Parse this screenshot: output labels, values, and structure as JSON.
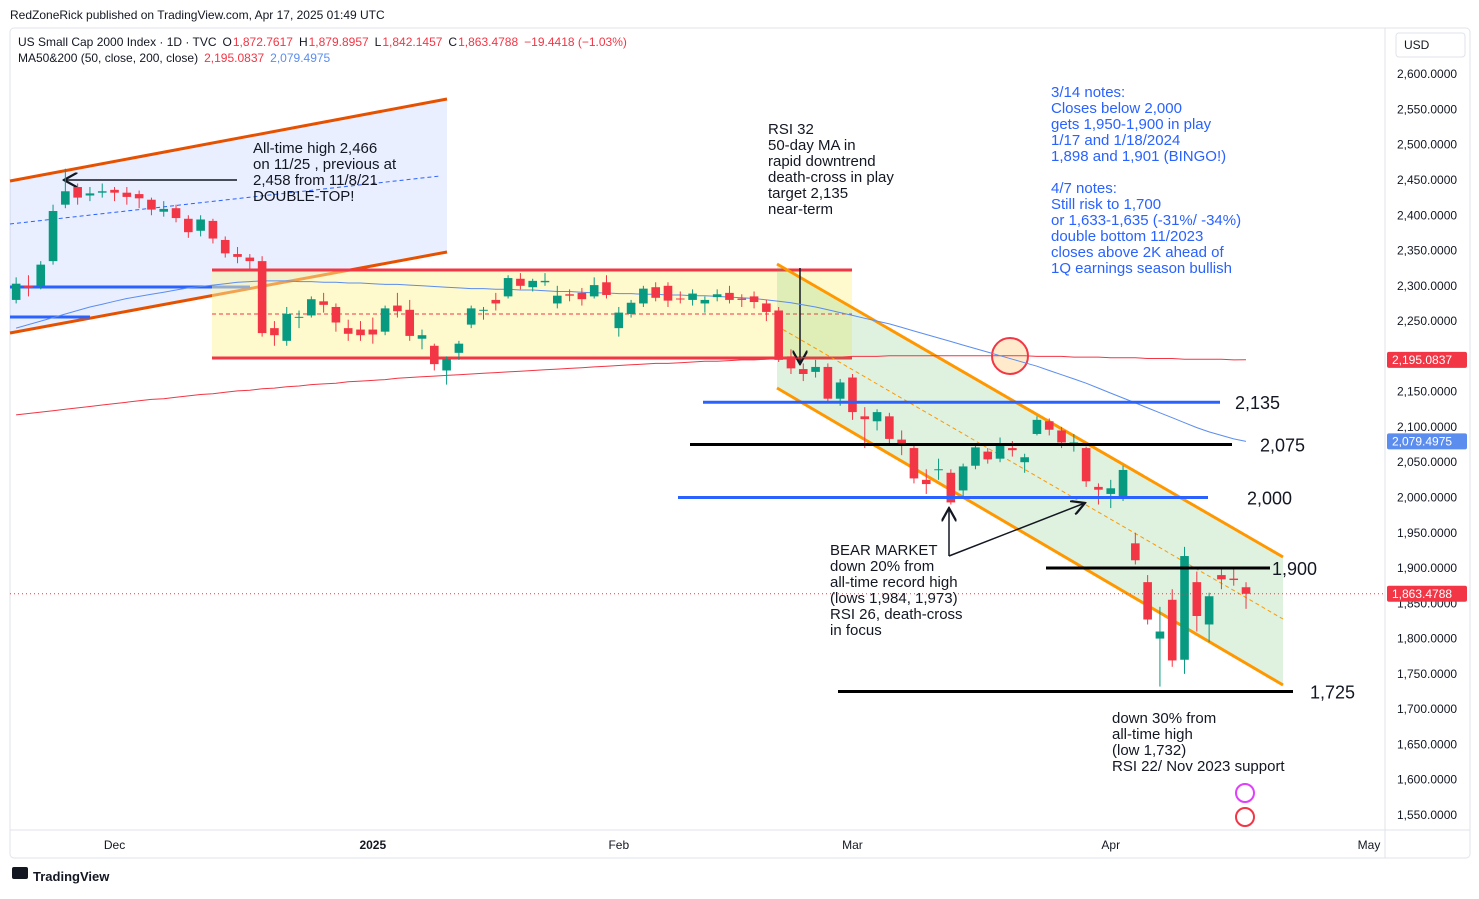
{
  "header": {
    "publisher": "RedZoneRick published on TradingView.com, Apr 17, 2025 01:49 UTC",
    "symbol": "US Small Cap 2000 Index · 1D · TVC",
    "ohlc": [
      {
        "key": "O",
        "label": "1,872.7617"
      },
      {
        "key": "H",
        "label": "1,879.8957"
      },
      {
        "key": "L",
        "label": "1,842.1457"
      },
      {
        "key": "C",
        "label": "1,863.4788"
      }
    ],
    "change": "−19.4418 (−1.03%)",
    "ma_title": "MA50&200 (50, close, 200, close)",
    "currency": "USD",
    "brand": "TradingView"
  },
  "chart_data": {
    "type": "candlestick",
    "candles": {
      "up_color": "#089981",
      "down_color": "#f23645",
      "open": [
        2280,
        2300,
        2300,
        2335,
        2415,
        2440,
        2428,
        2432,
        2436,
        2432,
        2430,
        2422,
        2405,
        2410,
        2395,
        2378,
        2392,
        2365,
        2345,
        2340,
        2335,
        2240,
        2222,
        2255,
        2258,
        2278,
        2270,
        2240,
        2238,
        2238,
        2235,
        2272,
        2266,
        2225,
        2215,
        2180,
        2205,
        2245,
        2265,
        2280,
        2285,
        2310,
        2298,
        2305,
        2275,
        2288,
        2290,
        2285,
        2305,
        2240,
        2260,
        2275,
        2298,
        2300,
        2282,
        2280,
        2275,
        2284,
        2290,
        2282,
        2285,
        2275,
        2265,
        2200,
        2182,
        2178,
        2185,
        2140,
        2170,
        2115,
        2108,
        2115,
        2082,
        2070,
        2025,
        2040,
        2035,
        2010,
        2045,
        2065,
        2055,
        2070,
        2050,
        2090,
        2108,
        2095,
        2075,
        2070,
        2015,
        2005,
        2000,
        1935,
        1880,
        1800,
        1855,
        1770,
        1880,
        1820,
        1890,
        1885,
        1872.7617
      ],
      "high": [
        2312,
        2315,
        2335,
        2415,
        2466,
        2445,
        2440,
        2445,
        2440,
        2440,
        2435,
        2425,
        2420,
        2415,
        2400,
        2400,
        2395,
        2370,
        2355,
        2345,
        2342,
        2250,
        2270,
        2265,
        2285,
        2290,
        2275,
        2252,
        2250,
        2255,
        2272,
        2290,
        2280,
        2238,
        2218,
        2200,
        2222,
        2272,
        2270,
        2290,
        2315,
        2318,
        2310,
        2318,
        2300,
        2295,
        2297,
        2312,
        2315,
        2270,
        2280,
        2300,
        2305,
        2305,
        2292,
        2295,
        2285,
        2295,
        2300,
        2288,
        2292,
        2280,
        2270,
        2210,
        2190,
        2195,
        2190,
        2168,
        2175,
        2128,
        2125,
        2120,
        2095,
        2075,
        2040,
        2055,
        2040,
        2048,
        2075,
        2070,
        2085,
        2080,
        2062,
        2115,
        2112,
        2100,
        2090,
        2072,
        2020,
        2025,
        2045,
        1950,
        1890,
        1845,
        1870,
        1930,
        1895,
        1865,
        1900,
        1900,
        1879.8957
      ],
      "low": [
        2275,
        2285,
        2295,
        2330,
        2410,
        2415,
        2420,
        2425,
        2420,
        2415,
        2410,
        2400,
        2398,
        2390,
        2368,
        2370,
        2360,
        2340,
        2332,
        2322,
        2228,
        2215,
        2215,
        2240,
        2255,
        2262,
        2235,
        2222,
        2222,
        2218,
        2230,
        2255,
        2222,
        2210,
        2180,
        2160,
        2195,
        2240,
        2252,
        2265,
        2282,
        2295,
        2292,
        2300,
        2268,
        2278,
        2272,
        2282,
        2282,
        2228,
        2255,
        2270,
        2278,
        2270,
        2275,
        2272,
        2262,
        2278,
        2275,
        2270,
        2268,
        2250,
        2192,
        2175,
        2165,
        2170,
        2135,
        2130,
        2110,
        2070,
        2095,
        2075,
        2060,
        2020,
        2005,
        2025,
        1990,
        2002,
        2040,
        2048,
        2050,
        2058,
        2035,
        2088,
        2088,
        2070,
        2065,
        2015,
        1990,
        1985,
        1995,
        1905,
        1820,
        1732,
        1760,
        1750,
        1810,
        1795,
        1870,
        1875,
        1842.1457
      ],
      "close": [
        2303,
        2297,
        2330,
        2406,
        2434,
        2425,
        2431,
        2434,
        2432,
        2426,
        2424,
        2408,
        2409,
        2396,
        2376,
        2394,
        2367,
        2346,
        2341,
        2335,
        2233,
        2230,
        2260,
        2256,
        2281,
        2273,
        2248,
        2232,
        2230,
        2231,
        2268,
        2264,
        2229,
        2230,
        2189,
        2196,
        2218,
        2268,
        2266,
        2275,
        2311,
        2300,
        2307,
        2307,
        2286,
        2286,
        2281,
        2301,
        2287,
        2262,
        2276,
        2296,
        2283,
        2279,
        2281,
        2289,
        2280,
        2288,
        2280,
        2280,
        2277,
        2263,
        2195,
        2183,
        2175,
        2185,
        2140,
        2163,
        2121,
        2111,
        2121,
        2083,
        2077,
        2027,
        2019,
        2040,
        1993,
        2044,
        2071,
        2054,
        2075,
        2067,
        2057,
        2110,
        2096,
        2078,
        2078,
        2023,
        2011,
        2013,
        2039,
        1911,
        1827,
        1810,
        1769,
        1917,
        1832,
        1860,
        1884,
        1883,
        1863.4788
      ]
    },
    "ma": [
      {
        "color": "#f23645",
        "values": [
          2117,
          2119,
          2121,
          2123,
          2125,
          2127,
          2129,
          2131,
          2133,
          2135,
          2137,
          2139,
          2140,
          2142,
          2144,
          2146,
          2147,
          2149,
          2151,
          2152,
          2154,
          2155,
          2157,
          2158,
          2160,
          2161,
          2162,
          2164,
          2165,
          2166,
          2167,
          2169,
          2170,
          2171,
          2172,
          2173,
          2174,
          2175,
          2176,
          2177,
          2178,
          2179,
          2180,
          2181,
          2182,
          2183,
          2184,
          2185,
          2186,
          2187,
          2188,
          2189,
          2190,
          2190,
          2191,
          2192,
          2193,
          2193,
          2194,
          2195,
          2195,
          2196,
          2197,
          2197,
          2198,
          2198,
          2199,
          2199,
          2200,
          2200,
          2200,
          2201,
          2201,
          2201,
          2201,
          2201,
          2201,
          2201,
          2201,
          2201,
          2201,
          2201,
          2201,
          2200,
          2200,
          2200,
          2199,
          2199,
          2199,
          2198,
          2198,
          2198,
          2197,
          2197,
          2197,
          2196,
          2196,
          2196,
          2196,
          2195,
          2195.0837
        ]
      },
      {
        "color": "#5b8def",
        "values": [
          2240,
          2245,
          2250,
          2255,
          2260,
          2265,
          2270,
          2274,
          2278,
          2282,
          2285,
          2288,
          2291,
          2294,
          2297,
          2299,
          2301,
          2303,
          2305,
          2306,
          2307,
          2307,
          2307,
          2306,
          2306,
          2305,
          2305,
          2304,
          2304,
          2303,
          2302,
          2302,
          2301,
          2300,
          2299,
          2298,
          2297,
          2296,
          2296,
          2295,
          2295,
          2294,
          2294,
          2293,
          2292,
          2292,
          2291,
          2290,
          2290,
          2289,
          2289,
          2288,
          2288,
          2287,
          2287,
          2286,
          2286,
          2285,
          2284,
          2283,
          2282,
          2280,
          2278,
          2276,
          2273,
          2270,
          2266,
          2262,
          2258,
          2254,
          2250,
          2246,
          2241,
          2236,
          2231,
          2226,
          2221,
          2216,
          2211,
          2206,
          2201,
          2196,
          2191,
          2186,
          2180,
          2174,
          2168,
          2162,
          2155,
          2148,
          2141,
          2134,
          2127,
          2120,
          2113,
          2106,
          2099,
          2093,
          2088,
          2083,
          2079.4975
        ]
      }
    ],
    "price_tags": [
      {
        "value": 2195.0837,
        "label": "2,195.0837",
        "color": "#f23645"
      },
      {
        "value": 2079.4975,
        "label": "2,079.4975",
        "color": "#5b8def"
      },
      {
        "value": 1863.4788,
        "label": "1,863.4788",
        "color": "#f23645"
      }
    ],
    "levels": [
      {
        "value": 2135,
        "label": "2,135",
        "color": "#2962ff"
      },
      {
        "value": 2075,
        "label": "2,075",
        "color": "#000000"
      },
      {
        "value": 2000,
        "label": "2,000",
        "color": "#2962ff"
      },
      {
        "value": 1900,
        "label": "1,900",
        "color": "#000000"
      },
      {
        "value": 1725,
        "label": "1,725",
        "color": "#000000"
      }
    ],
    "ylim": [
      1528.7,
      2665.4
    ],
    "yticks": [
      {
        "value": 1550,
        "label": "1,550.0000"
      },
      {
        "value": 1600,
        "label": "1,600.0000"
      },
      {
        "value": 1650,
        "label": "1,650.0000"
      },
      {
        "value": 1700,
        "label": "1,700.0000"
      },
      {
        "value": 1750,
        "label": "1,750.0000"
      },
      {
        "value": 1800,
        "label": "1,800.0000"
      },
      {
        "value": 1850,
        "label": "1,850.0000"
      },
      {
        "value": 1900,
        "label": "1,900.0000"
      },
      {
        "value": 1950,
        "label": "1,950.0000"
      },
      {
        "value": 2000,
        "label": "2,000.0000"
      },
      {
        "value": 2050,
        "label": "2,050.0000"
      },
      {
        "value": 2100,
        "label": "2,100.0000"
      },
      {
        "value": 2150,
        "label": "2,150.0000"
      },
      {
        "value": 2200,
        "label": "2,200.0000"
      },
      {
        "value": 2250,
        "label": "2,250.0000"
      },
      {
        "value": 2300,
        "label": "2,300.0000"
      },
      {
        "value": 2350,
        "label": "2,350.0000"
      },
      {
        "value": 2400,
        "label": "2,400.0000"
      },
      {
        "value": 2450,
        "label": "2,450.0000"
      },
      {
        "value": 2500,
        "label": "2,500.0000"
      },
      {
        "value": 2550,
        "label": "2,550.0000"
      },
      {
        "value": 2600,
        "label": "2,600.0000"
      }
    ],
    "xlim": [
      -0.5,
      111.3
    ],
    "xticks": [
      {
        "value": 8,
        "label": "Dec"
      },
      {
        "value": 29,
        "label": "2025"
      },
      {
        "value": 49,
        "label": "Feb"
      },
      {
        "value": 68,
        "label": "Mar"
      },
      {
        "value": 89,
        "label": "Apr"
      },
      {
        "value": 110,
        "label": "May"
      }
    ],
    "annotations": {
      "ath": [
        "All-time high 2,466",
        "on 11/25 , previous at",
        "2,458 from 11/8/21",
        "DOUBLE-TOP!"
      ],
      "rsi32": [
        "RSI 32",
        "50-day MA in",
        "rapid downtrend",
        "death-cross in play",
        "target 2,135",
        "near-term"
      ],
      "notes_314": [
        "3/14 notes:",
        "Closes below 2,000",
        "gets 1,950-1,900 in play",
        "1/17 and 1/18/2024",
        "1,898 and 1,901 (BINGO!)"
      ],
      "notes_47": [
        "4/7 notes:",
        "Still risk to 1,700",
        "or 1,633-1,635 (-31%/ -34%)",
        "double bottom 11/2023",
        "closes above 2K ahead of",
        "1Q earnings season bullish"
      ],
      "bear": [
        "BEAR MARKET",
        "down 20% from",
        "all-time record high",
        "(lows 1,984, 1,973)",
        "RSI 26, death-cross",
        "in focus"
      ],
      "down30": [
        "down 30% from",
        "all-time high",
        "(low 1,732)",
        "RSI 22/ Nov 2023 support"
      ]
    }
  }
}
